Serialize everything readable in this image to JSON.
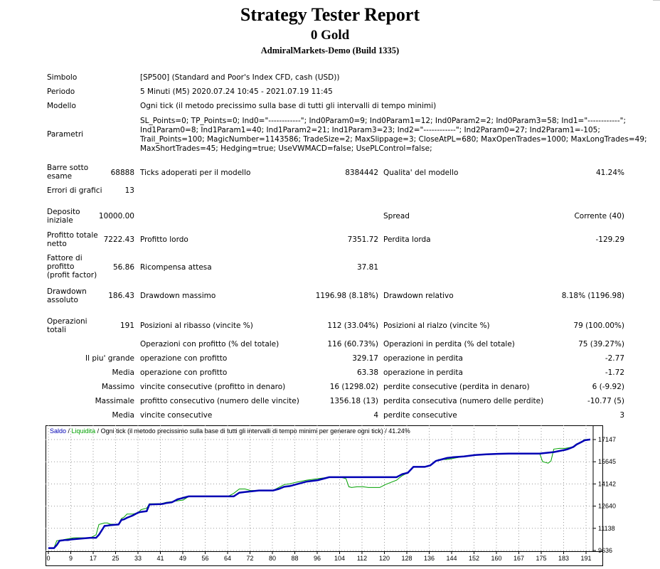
{
  "header": {
    "title": "Strategy Tester Report",
    "subtitle": "0 Gold",
    "server": "AdmiralMarkets-Demo (Build 1335)"
  },
  "settings": {
    "symbol_label": "Simbolo",
    "symbol_value": "[SP500] (Standard and Poor's Index CFD, cash (USD))",
    "period_label": "Periodo",
    "period_value": "5 Minuti (M5) 2020.07.24 10:45 - 2021.07.19 11:45",
    "model_label": "Modello",
    "model_value": "Ogni tick (il metodo precissimo sulla base di tutti gli intervalli di tempo minimi)",
    "params_label": "Parametri",
    "params_lines": [
      "SL_Points=0; TP_Points=0; Ind0=\"------------\"; Ind0Param0=9; Ind0Param1=12; Ind0Param2=2; Ind0Param3=58; Ind1=\"------------\";",
      "Ind1Param0=8; Ind1Param1=40; Ind1Param2=21; Ind1Param3=23; Ind2=\"------------\"; Ind2Param0=27; Ind2Param1=-105;",
      "Trail_Points=100; MagicNumber=1143586; TradeSize=2; MaxSlippage=3; CloseAtPL=680; MaxOpenTrades=1000; MaxLongTrades=49;",
      "MaxShortTrades=45; Hedging=true; UseVWMACD=false; UsePLControl=false;"
    ]
  },
  "stats": {
    "bars_label": "Barre sotto esame",
    "bars_value": "68888",
    "ticks_label": "Ticks adoperati per il modello",
    "ticks_value": "8384442",
    "quality_label": "Qualita' del modello",
    "quality_value": "41.24%",
    "errors_label": "Errori di grafici",
    "errors_value": "13",
    "deposit_label": "Deposito iniziale",
    "deposit_value": "10000.00",
    "spread_label": "Spread",
    "spread_value": "Corrente (40)",
    "net_label": "Profitto totale netto",
    "net_value": "7222.43",
    "gross_profit_label": "Profitto lordo",
    "gross_profit_value": "7351.72",
    "gross_loss_label": "Perdita lorda",
    "gross_loss_value": "-129.29",
    "pf_label": "Fattore di profitto (profit factor)",
    "pf_value": "56.86",
    "expected_label": "Ricompensa attesa",
    "expected_value": "37.81",
    "dd_abs_label": "Drawdown assoluto",
    "dd_abs_value": "186.43",
    "dd_max_label": "Drawdown massimo",
    "dd_max_value": "1196.98 (8.18%)",
    "dd_rel_label": "Drawdown relativo",
    "dd_rel_value": "8.18% (1196.98)",
    "trades_label": "Operazioni totali",
    "trades_value": "191",
    "short_label": "Posizioni al ribasso (vincite %)",
    "short_value": "112 (33.04%)",
    "long_label": "Posizioni al rialzo (vincite %)",
    "long_value": "79 (100.00%)",
    "profit_trades_label": "Operazioni con profitto (% del totale)",
    "profit_trades_value": "116 (60.73%)",
    "loss_trades_label": "Operazioni in perdita (% del totale)",
    "loss_trades_value": "75 (39.27%)",
    "largest_label": "Il piu' grande",
    "largest_profit_label": "operazione con profitto",
    "largest_profit_value": "329.17",
    "largest_loss_label": "operazione in perdita",
    "largest_loss_value": "-2.77",
    "avg_label": "Media",
    "avg_profit_label": "operazione con profitto",
    "avg_profit_value": "63.38",
    "avg_loss_label": "operazione in perdita",
    "avg_loss_value": "-1.72",
    "max_label": "Massimo",
    "max_wins_label": "vincite consecutive (profitto in denaro)",
    "max_wins_value": "16 (1298.02)",
    "max_losses_label": "perdite consecutive (perdita in denaro)",
    "max_losses_value": "6 (-9.92)",
    "maximal_label": "Massimale",
    "maximal_profit_label": "profitto consecutivo (numero delle vincite)",
    "maximal_profit_value": "1356.18 (13)",
    "maximal_loss_label": "perdita consecutiva (numero delle perdite)",
    "maximal_loss_value": "-10.77 (5)",
    "avg2_label": "Media",
    "avg_wins_label": "vincite consecutive",
    "avg_wins_value": "4",
    "avg_losses_label": "perdite consecutive",
    "avg_losses_value": "3"
  },
  "chart_legend": {
    "balance": "Saldo",
    "sep": " / ",
    "equity": "Liquidita",
    "rest": " / Ogni tick (il metodo precissimo sulla base di tutti gli intervalli di tempo minimi per generare ogni tick) / 41.24%"
  },
  "colors": {
    "balance": "#0000b4",
    "equity": "#00a000"
  },
  "chart_data": {
    "type": "line",
    "x_ticks": [
      "0",
      "9",
      "17",
      "25",
      "33",
      "41",
      "49",
      "56",
      "64",
      "72",
      "80",
      "88",
      "96",
      "104",
      "112",
      "120",
      "128",
      "136",
      "144",
      "152",
      "160",
      "167",
      "175",
      "183",
      "191"
    ],
    "y_ticks": [
      "17147",
      "15645",
      "14142",
      "12640",
      "11138",
      "9636"
    ],
    "ylim": [
      9636,
      17147
    ],
    "xlim": [
      0,
      193
    ],
    "series": [
      {
        "name": "Saldo",
        "x": [
          0,
          2,
          3,
          4,
          5,
          6,
          7,
          8,
          9,
          15,
          17,
          18,
          20,
          21,
          22,
          25,
          26,
          27,
          28,
          30,
          32,
          33,
          35,
          36,
          40,
          41,
          42,
          44,
          46,
          48,
          50,
          56,
          64,
          66,
          68,
          70,
          75,
          80,
          82,
          84,
          86,
          88,
          92,
          96,
          98,
          100,
          104,
          110,
          114,
          118,
          120,
          124,
          125,
          126,
          127,
          128,
          130,
          134,
          136,
          138,
          140,
          142,
          144,
          148,
          152,
          156,
          160,
          164,
          168,
          175,
          180,
          184,
          185,
          187,
          188,
          190,
          191,
          193
        ],
        "y": [
          9800,
          9800,
          10000,
          10300,
          10320,
          10350,
          10350,
          10380,
          10400,
          10500,
          10500,
          10700,
          11300,
          11320,
          11350,
          11400,
          11700,
          11750,
          11850,
          12000,
          12200,
          12250,
          12300,
          12750,
          12780,
          12800,
          12850,
          12900,
          13100,
          13200,
          13300,
          13300,
          13300,
          13300,
          13550,
          13600,
          13700,
          13700,
          13800,
          13950,
          14000,
          14100,
          14300,
          14400,
          14500,
          14600,
          14600,
          14600,
          14600,
          14600,
          14600,
          14600,
          14700,
          14800,
          14850,
          14900,
          15300,
          15300,
          15400,
          15700,
          15800,
          15900,
          15950,
          16000,
          16100,
          16150,
          16180,
          16200,
          16200,
          16200,
          16300,
          16450,
          16500,
          16650,
          16800,
          17000,
          17100,
          17150
        ]
      },
      {
        "name": "Liquidita",
        "x": [
          0,
          2,
          3,
          4,
          9,
          15,
          17,
          18,
          20,
          21,
          22,
          25,
          26,
          27,
          28,
          30,
          32,
          33,
          35,
          36,
          40,
          41,
          42,
          44,
          46,
          48,
          50,
          64,
          66,
          68,
          70,
          72,
          80,
          82,
          84,
          86,
          88,
          92,
          96,
          100,
          104,
          106,
          107,
          108,
          110,
          112,
          114,
          118,
          120,
          124,
          125,
          126,
          128,
          130,
          134,
          136,
          138,
          139,
          140,
          142,
          148,
          152,
          156,
          160,
          164,
          167,
          175,
          176,
          178,
          179,
          180,
          182,
          184,
          187,
          188,
          190,
          191,
          193
        ],
        "y": [
          9800,
          9800,
          10300,
          10320,
          10500,
          10500,
          10700,
          11400,
          11500,
          11500,
          11420,
          11400,
          11800,
          11900,
          12100,
          12100,
          12200,
          12400,
          12500,
          12800,
          12800,
          12850,
          12900,
          12950,
          13000,
          13050,
          13300,
          13300,
          13500,
          13800,
          13800,
          13700,
          13700,
          13900,
          14100,
          14150,
          14250,
          14400,
          14500,
          14600,
          14600,
          14500,
          13950,
          13900,
          13950,
          13950,
          13900,
          13900,
          14100,
          14400,
          14550,
          14700,
          14900,
          15300,
          15300,
          15400,
          15700,
          15800,
          15800,
          15800,
          16000,
          16100,
          16150,
          16180,
          16200,
          16200,
          16200,
          15650,
          15550,
          15700,
          16500,
          16550,
          16550,
          16650,
          16850,
          17000,
          17150,
          17150
        ]
      }
    ]
  }
}
